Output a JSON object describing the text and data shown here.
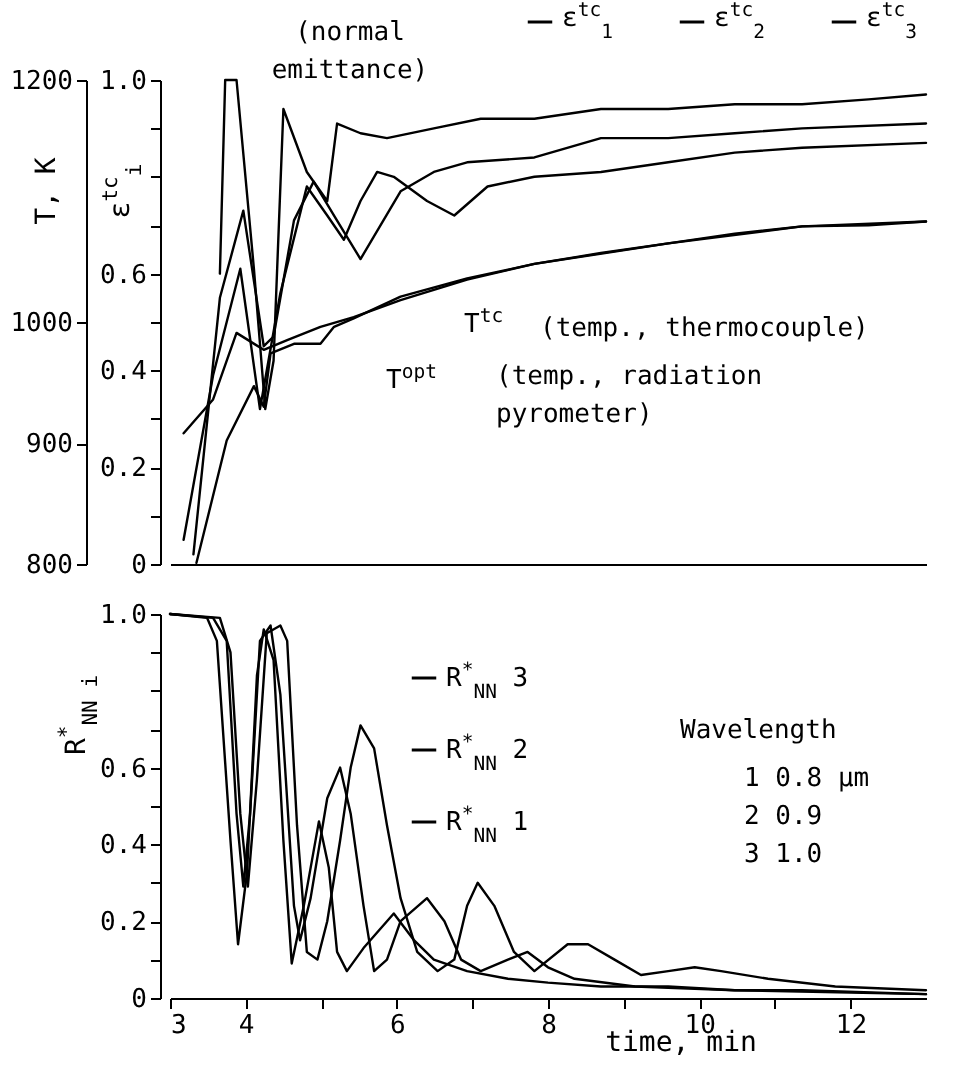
{
  "chart_data": [
    {
      "type": "line",
      "xlim": [
        3,
        13
      ],
      "ylim": [
        0,
        1
      ],
      "yticks": [
        0,
        {
          "value": 0.1,
          "label": null
        },
        0.2,
        {
          "value": 0.3,
          "label": null
        },
        0.4,
        {
          "value": 0.5,
          "label": null
        },
        0.6,
        {
          "value": 0.7,
          "label": null
        },
        {
          "value": 0.8,
          "label": null
        },
        {
          "value": 0.9,
          "label": null
        },
        {
          "value": 1,
          "label": "1.0"
        }
      ],
      "y2lim": [
        800,
        1200
      ],
      "y2ticks": [
        800,
        900,
        1000,
        1200
      ],
      "ylabel": "ε$^{tc}$$_{i}$",
      "y2label": "T, K",
      "tick_labels": "y",
      "legend": "top",
      "series": [
        {
          "name": "ε$^{tc}$$_{1}$",
          "color": "#000000",
          "x": [
            3.66,
            3.73,
            3.88,
            4.11,
            4.26,
            4.37,
            4.5,
            4.81,
            5.08,
            5.21,
            5.52,
            5.87,
            6.49,
            7.11,
            7.82,
            8.7,
            9.59,
            10.47,
            11.36,
            12.24,
            13.0
          ],
          "values": [
            0.6,
            1.0,
            1.0,
            0.61,
            0.32,
            0.42,
            0.94,
            0.81,
            0.75,
            0.91,
            0.89,
            0.88,
            0.9,
            0.92,
            0.92,
            0.94,
            0.94,
            0.95,
            0.95,
            0.96,
            0.97
          ]
        },
        {
          "name": "ε$^{tc}$$_{2}$",
          "color": "#000000",
          "x": [
            3.31,
            3.66,
            3.97,
            4.24,
            4.37,
            4.64,
            4.9,
            5.17,
            5.52,
            6.05,
            6.49,
            6.93,
            7.82,
            8.7,
            9.59,
            10.47,
            11.36,
            13.0
          ],
          "values": [
            0.02,
            0.55,
            0.73,
            0.45,
            0.47,
            0.71,
            0.79,
            0.72,
            0.63,
            0.77,
            0.81,
            0.83,
            0.84,
            0.88,
            0.88,
            0.89,
            0.9,
            0.91
          ]
        },
        {
          "name": "ε$^{tc}$$_{3}$",
          "color": "#000000",
          "x": [
            3.18,
            3.57,
            3.93,
            4.19,
            4.46,
            4.81,
            5.08,
            5.3,
            5.52,
            5.74,
            5.96,
            6.4,
            6.76,
            7.2,
            7.82,
            8.7,
            9.59,
            10.47,
            11.36,
            13.0
          ],
          "values": [
            0.05,
            0.39,
            0.61,
            0.32,
            0.56,
            0.78,
            0.72,
            0.67,
            0.75,
            0.81,
            0.8,
            0.75,
            0.72,
            0.78,
            0.8,
            0.81,
            0.83,
            0.85,
            0.86,
            0.87
          ]
        },
        {
          "name": "T$^{tc}$",
          "color": "#000000",
          "axis": "y2",
          "x": [
            3.18,
            3.57,
            3.88,
            4.24,
            4.55,
            4.99,
            5.43,
            6.05,
            6.93,
            7.82,
            8.7,
            9.59,
            10.47,
            11.36,
            12.24,
            13.0
          ],
          "values": [
            908,
            936,
            991,
            977,
            985,
            996,
            1004,
            1018,
            1035,
            1048,
            1057,
            1065,
            1073,
            1079,
            1080,
            1083
          ]
        },
        {
          "name": "T$^{opt}$",
          "color": "#000000",
          "axis": "y2",
          "x": [
            3.35,
            3.75,
            4.11,
            4.24,
            4.33,
            4.64,
            4.99,
            5.17,
            5.43,
            6.05,
            6.93,
            7.82,
            9.59,
            11.36,
            13.0
          ],
          "values": [
            801,
            902,
            947,
            930,
            974,
            982,
            982,
            996,
            1003,
            1021,
            1036,
            1048,
            1065,
            1079,
            1083
          ]
        }
      ],
      "annotations": [
        "(normal emittance)",
        "(temp., thermocouple)",
        "(temp., radiation pyrometer)"
      ]
    },
    {
      "type": "line",
      "xlim": [
        3,
        13
      ],
      "xticks": [
        3,
        4,
        {
          "value": 5,
          "label": null
        },
        6,
        {
          "value": 7,
          "label": null
        },
        8,
        {
          "value": 9,
          "label": null
        },
        10,
        {
          "value": 11,
          "label": null
        },
        12
      ],
      "ylim": [
        0,
        1
      ],
      "yticks": [
        0,
        {
          "value": 0.1,
          "label": null
        },
        0.2,
        {
          "value": 0.3,
          "label": null
        },
        0.4,
        {
          "value": 0.5,
          "label": null
        },
        0.6,
        {
          "value": 0.7,
          "label": null
        },
        {
          "value": 0.8,
          "label": null
        },
        {
          "value": 0.9,
          "label": null
        },
        {
          "value": 1,
          "label": "1.0"
        }
      ],
      "xlabel": "time, min",
      "ylabel": "R$^{*}$$_{NN i}$",
      "legend": "top",
      "series": [
        {
          "name": "R$^{*}$$_{NN}$ 3",
          "color": "#000000",
          "x": [
            3.0,
            3.66,
            3.8,
            3.93,
            4.03,
            4.15,
            4.28,
            4.46,
            4.55,
            4.68,
            4.81,
            4.95,
            5.08,
            5.25,
            5.39,
            5.52,
            5.7,
            5.87,
            6.05,
            6.27,
            6.54,
            6.76,
            6.93,
            7.07,
            7.29,
            7.55,
            7.82,
            8.26,
            8.53,
            8.88,
            9.23,
            9.59,
            9.94,
            10.29,
            10.91,
            11.8,
            13.0
          ],
          "values": [
            1.0,
            0.99,
            0.9,
            0.48,
            0.29,
            0.57,
            0.95,
            0.97,
            0.93,
            0.45,
            0.12,
            0.1,
            0.2,
            0.41,
            0.6,
            0.71,
            0.65,
            0.45,
            0.26,
            0.12,
            0.07,
            0.1,
            0.24,
            0.3,
            0.24,
            0.12,
            0.07,
            0.14,
            0.14,
            0.1,
            0.06,
            0.07,
            0.08,
            0.07,
            0.05,
            0.03,
            0.02
          ]
        },
        {
          "name": "R$^{*}$$_{NN}$ 2",
          "color": "#000000",
          "x": [
            3.0,
            3.57,
            3.75,
            3.88,
            3.97,
            4.06,
            4.19,
            4.33,
            4.46,
            4.64,
            4.72,
            4.86,
            5.08,
            5.25,
            5.39,
            5.56,
            5.7,
            5.87,
            6.05,
            6.4,
            6.63,
            6.85,
            7.11,
            7.47,
            7.73,
            8.0,
            8.35,
            9.15,
            10.47,
            13.0
          ],
          "values": [
            1.0,
            0.99,
            0.93,
            0.48,
            0.29,
            0.48,
            0.93,
            0.97,
            0.79,
            0.24,
            0.15,
            0.26,
            0.52,
            0.6,
            0.48,
            0.24,
            0.07,
            0.1,
            0.2,
            0.26,
            0.2,
            0.1,
            0.07,
            0.1,
            0.12,
            0.08,
            0.05,
            0.03,
            0.02,
            0.01
          ]
        },
        {
          "name": "R$^{*}$$_{NN}$ 1",
          "color": "#000000",
          "x": [
            3.0,
            3.49,
            3.62,
            3.8,
            3.9,
            4.02,
            4.15,
            4.24,
            4.37,
            4.5,
            4.61,
            4.77,
            4.97,
            5.1,
            5.21,
            5.34,
            5.56,
            5.96,
            6.23,
            6.49,
            6.93,
            7.47,
            8.0,
            8.7,
            9.59,
            10.47,
            11.36,
            13.0
          ],
          "values": [
            1.0,
            0.99,
            0.93,
            0.41,
            0.14,
            0.33,
            0.84,
            0.96,
            0.88,
            0.41,
            0.09,
            0.24,
            0.46,
            0.34,
            0.12,
            0.07,
            0.13,
            0.22,
            0.15,
            0.1,
            0.07,
            0.05,
            0.04,
            0.03,
            0.03,
            0.02,
            0.02,
            0.01
          ]
        }
      ],
      "annotations": [
        "Wavelength",
        "1  0.8 µm",
        "2  0.9",
        "3  1.0"
      ]
    }
  ]
}
